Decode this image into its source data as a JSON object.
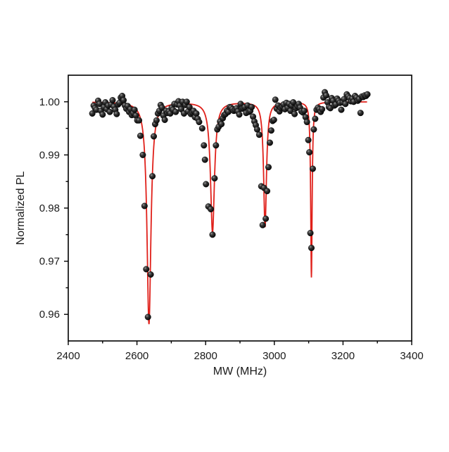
{
  "chart_data": {
    "type": "scatter",
    "title": "",
    "xlabel": "MW (MHz)",
    "ylabel": "Normalized PL",
    "xlim": [
      2400,
      3400
    ],
    "ylim": [
      0.955,
      1.005
    ],
    "x_ticks": [
      2400,
      2600,
      2800,
      3000,
      3200,
      3400
    ],
    "x_tick_labels": [
      "2400",
      "2600",
      "2800",
      "3000",
      "3200",
      "3400"
    ],
    "y_ticks": [
      0.96,
      0.97,
      0.98,
      0.99,
      1.0
    ],
    "y_tick_labels": [
      "0.96",
      "0.97",
      "0.98",
      "0.99",
      "1.00"
    ],
    "grid": false,
    "legend": "none",
    "series": [
      {
        "kind": "markers",
        "color": "#111111",
        "marker": "black-sphere",
        "points": [
          [
            2470,
            0.9978
          ],
          [
            2474,
            0.9993
          ],
          [
            2478,
            0.9988
          ],
          [
            2482,
            0.9985
          ],
          [
            2487,
            1.0002
          ],
          [
            2491,
            0.9996
          ],
          [
            2495,
            0.9983
          ],
          [
            2500,
            0.9976
          ],
          [
            2504,
            0.999
          ],
          [
            2508,
            0.9999
          ],
          [
            2512,
            0.9986
          ],
          [
            2516,
            0.9993
          ],
          [
            2521,
            0.9981
          ],
          [
            2525,
            0.9995
          ],
          [
            2529,
            1.0003
          ],
          [
            2533,
            0.9991
          ],
          [
            2537,
            0.9985
          ],
          [
            2541,
            0.9977
          ],
          [
            2545,
            0.9995
          ],
          [
            2549,
            0.9998
          ],
          [
            2553,
            1.0008
          ],
          [
            2557,
            1.0011
          ],
          [
            2561,
            1.0003
          ],
          [
            2565,
            0.9993
          ],
          [
            2569,
            0.9987
          ],
          [
            2573,
            0.9992
          ],
          [
            2577,
            0.9981
          ],
          [
            2581,
            0.9986
          ],
          [
            2585,
            0.9975
          ],
          [
            2589,
            0.9979
          ],
          [
            2593,
            0.9985
          ],
          [
            2597,
            0.9974
          ],
          [
            2601,
            0.9965
          ],
          [
            2606,
            0.9965
          ],
          [
            2610,
            0.9936
          ],
          [
            2617,
            0.99
          ],
          [
            2622,
            0.9804
          ],
          [
            2627,
            0.9685
          ],
          [
            2632,
            0.9595
          ],
          [
            2640,
            0.9675
          ],
          [
            2645,
            0.986
          ],
          [
            2649,
            0.9935
          ],
          [
            2653,
            0.9958
          ],
          [
            2657,
            0.9965
          ],
          [
            2661,
            0.9978
          ],
          [
            2665,
            0.9983
          ],
          [
            2669,
            0.9994
          ],
          [
            2673,
            0.9989
          ],
          [
            2677,
            0.9974
          ],
          [
            2681,
            0.9966
          ],
          [
            2685,
            0.9983
          ],
          [
            2689,
            0.9979
          ],
          [
            2693,
            0.9982
          ],
          [
            2697,
            0.9978
          ],
          [
            2701,
            0.9989
          ],
          [
            2705,
            0.9985
          ],
          [
            2709,
            0.9996
          ],
          [
            2713,
            0.9981
          ],
          [
            2717,
            0.9995
          ],
          [
            2721,
            1.0001
          ],
          [
            2725,
            0.9993
          ],
          [
            2729,
            0.9986
          ],
          [
            2733,
            1.0
          ],
          [
            2737,
            0.9978
          ],
          [
            2741,
            0.9994
          ],
          [
            2745,
            1.0
          ],
          [
            2749,
            0.9982
          ],
          [
            2753,
            0.999
          ],
          [
            2757,
            0.9977
          ],
          [
            2761,
            0.998
          ],
          [
            2765,
            0.9983
          ],
          [
            2769,
            0.9971
          ],
          [
            2773,
            0.9978
          ],
          [
            2777,
            0.9968
          ],
          [
            2781,
            0.9962
          ],
          [
            2790,
            0.995
          ],
          [
            2795,
            0.9918
          ],
          [
            2798,
            0.9891
          ],
          [
            2801,
            0.9845
          ],
          [
            2808,
            0.9803
          ],
          [
            2815,
            0.9798
          ],
          [
            2820,
            0.975
          ],
          [
            2826,
            0.9856
          ],
          [
            2830,
            0.9918
          ],
          [
            2834,
            0.9948
          ],
          [
            2838,
            0.9953
          ],
          [
            2842,
            0.9963
          ],
          [
            2846,
            0.9958
          ],
          [
            2850,
            0.9969
          ],
          [
            2854,
            0.9975
          ],
          [
            2858,
            0.9977
          ],
          [
            2862,
            0.9983
          ],
          [
            2866,
            0.9981
          ],
          [
            2870,
            0.999
          ],
          [
            2874,
            0.9989
          ],
          [
            2878,
            0.9986
          ],
          [
            2882,
            0.9983
          ],
          [
            2886,
            0.9985
          ],
          [
            2890,
            0.9988
          ],
          [
            2894,
            0.9982
          ],
          [
            2898,
            0.9976
          ],
          [
            2902,
            0.9996
          ],
          [
            2906,
            0.9987
          ],
          [
            2910,
            0.9988
          ],
          [
            2914,
            0.999
          ],
          [
            2918,
            0.9979
          ],
          [
            2922,
            0.9993
          ],
          [
            2926,
            0.9981
          ],
          [
            2930,
            0.9983
          ],
          [
            2934,
            0.999
          ],
          [
            2938,
            0.9972
          ],
          [
            2942,
            0.9963
          ],
          [
            2946,
            0.9956
          ],
          [
            2950,
            0.9948
          ],
          [
            2956,
            0.9938
          ],
          [
            2962,
            0.9841
          ],
          [
            2966,
            0.9768
          ],
          [
            2970,
            0.9838
          ],
          [
            2975,
            0.978
          ],
          [
            2979,
            0.9832
          ],
          [
            2983,
            0.9877
          ],
          [
            2987,
            0.9923
          ],
          [
            2991,
            0.9946
          ],
          [
            2995,
            0.9964
          ],
          [
            2999,
            0.9966
          ],
          [
            3003,
            1.0004
          ],
          [
            3007,
            0.9987
          ],
          [
            3011,
            0.9993
          ],
          [
            3015,
            0.9982
          ],
          [
            3019,
            0.9988
          ],
          [
            3023,
            0.9991
          ],
          [
            3027,
            0.9995
          ],
          [
            3031,
            0.9986
          ],
          [
            3035,
            0.9998
          ],
          [
            3039,
            0.9989
          ],
          [
            3043,
            0.9996
          ],
          [
            3047,
            0.9983
          ],
          [
            3051,
            0.9993
          ],
          [
            3055,
            0.9999
          ],
          [
            3059,
            0.9977
          ],
          [
            3063,
            0.9988
          ],
          [
            3067,
            0.9992
          ],
          [
            3071,
            0.9996
          ],
          [
            3075,
            0.9989
          ],
          [
            3079,
            0.9982
          ],
          [
            3083,
            0.998
          ],
          [
            3087,
            0.9983
          ],
          [
            3091,
            0.9971
          ],
          [
            3095,
            0.9962
          ],
          [
            3099,
            0.9928
          ],
          [
            3102,
            0.9905
          ],
          [
            3105,
            0.9753
          ],
          [
            3108,
            0.9725
          ],
          [
            3112,
            0.9874
          ],
          [
            3115,
            0.9948
          ],
          [
            3119,
            0.9968
          ],
          [
            3123,
            0.9985
          ],
          [
            3127,
            0.9989
          ],
          [
            3131,
            0.9986
          ],
          [
            3135,
            0.9981
          ],
          [
            3139,
            0.9986
          ],
          [
            3143,
            1.0008
          ],
          [
            3147,
            1.0018
          ],
          [
            3151,
            1.0012
          ],
          [
            3155,
            0.9999
          ],
          [
            3159,
            0.999
          ],
          [
            3163,
            0.9988
          ],
          [
            3167,
            1.0007
          ],
          [
            3171,
            1.0002
          ],
          [
            3175,
            0.9993
          ],
          [
            3179,
            0.9995
          ],
          [
            3183,
            1.0006
          ],
          [
            3187,
            1.0002
          ],
          [
            3191,
            0.9998
          ],
          [
            3195,
            0.9985
          ],
          [
            3199,
            0.9999
          ],
          [
            3203,
            1.0005
          ],
          [
            3207,
            0.9996
          ],
          [
            3211,
            1.0014
          ],
          [
            3215,
            1.001
          ],
          [
            3219,
            1.0007
          ],
          [
            3223,
            1.0001
          ],
          [
            3227,
            1.0006
          ],
          [
            3231,
            1.0
          ],
          [
            3235,
            1.0011
          ],
          [
            3239,
            1.0008
          ],
          [
            3243,
            1.0002
          ],
          [
            3247,
            1.0005
          ],
          [
            3251,
            0.9979
          ],
          [
            3255,
            1.001
          ],
          [
            3259,
            1.0009
          ],
          [
            3263,
            1.0012
          ],
          [
            3267,
            1.0011
          ],
          [
            3271,
            1.0014
          ]
        ]
      },
      {
        "kind": "fit-line",
        "color": "#e0201a",
        "x_range": [
          2470,
          3270
        ],
        "baseline": 1.0,
        "dips": [
          {
            "center": 2635,
            "depth": 0.0418,
            "width": 7
          },
          {
            "center": 2820,
            "depth": 0.0245,
            "width": 7
          },
          {
            "center": 2973,
            "depth": 0.0235,
            "width": 5
          },
          {
            "center": 3108,
            "depth": 0.033,
            "width": 2.5
          }
        ]
      }
    ]
  }
}
